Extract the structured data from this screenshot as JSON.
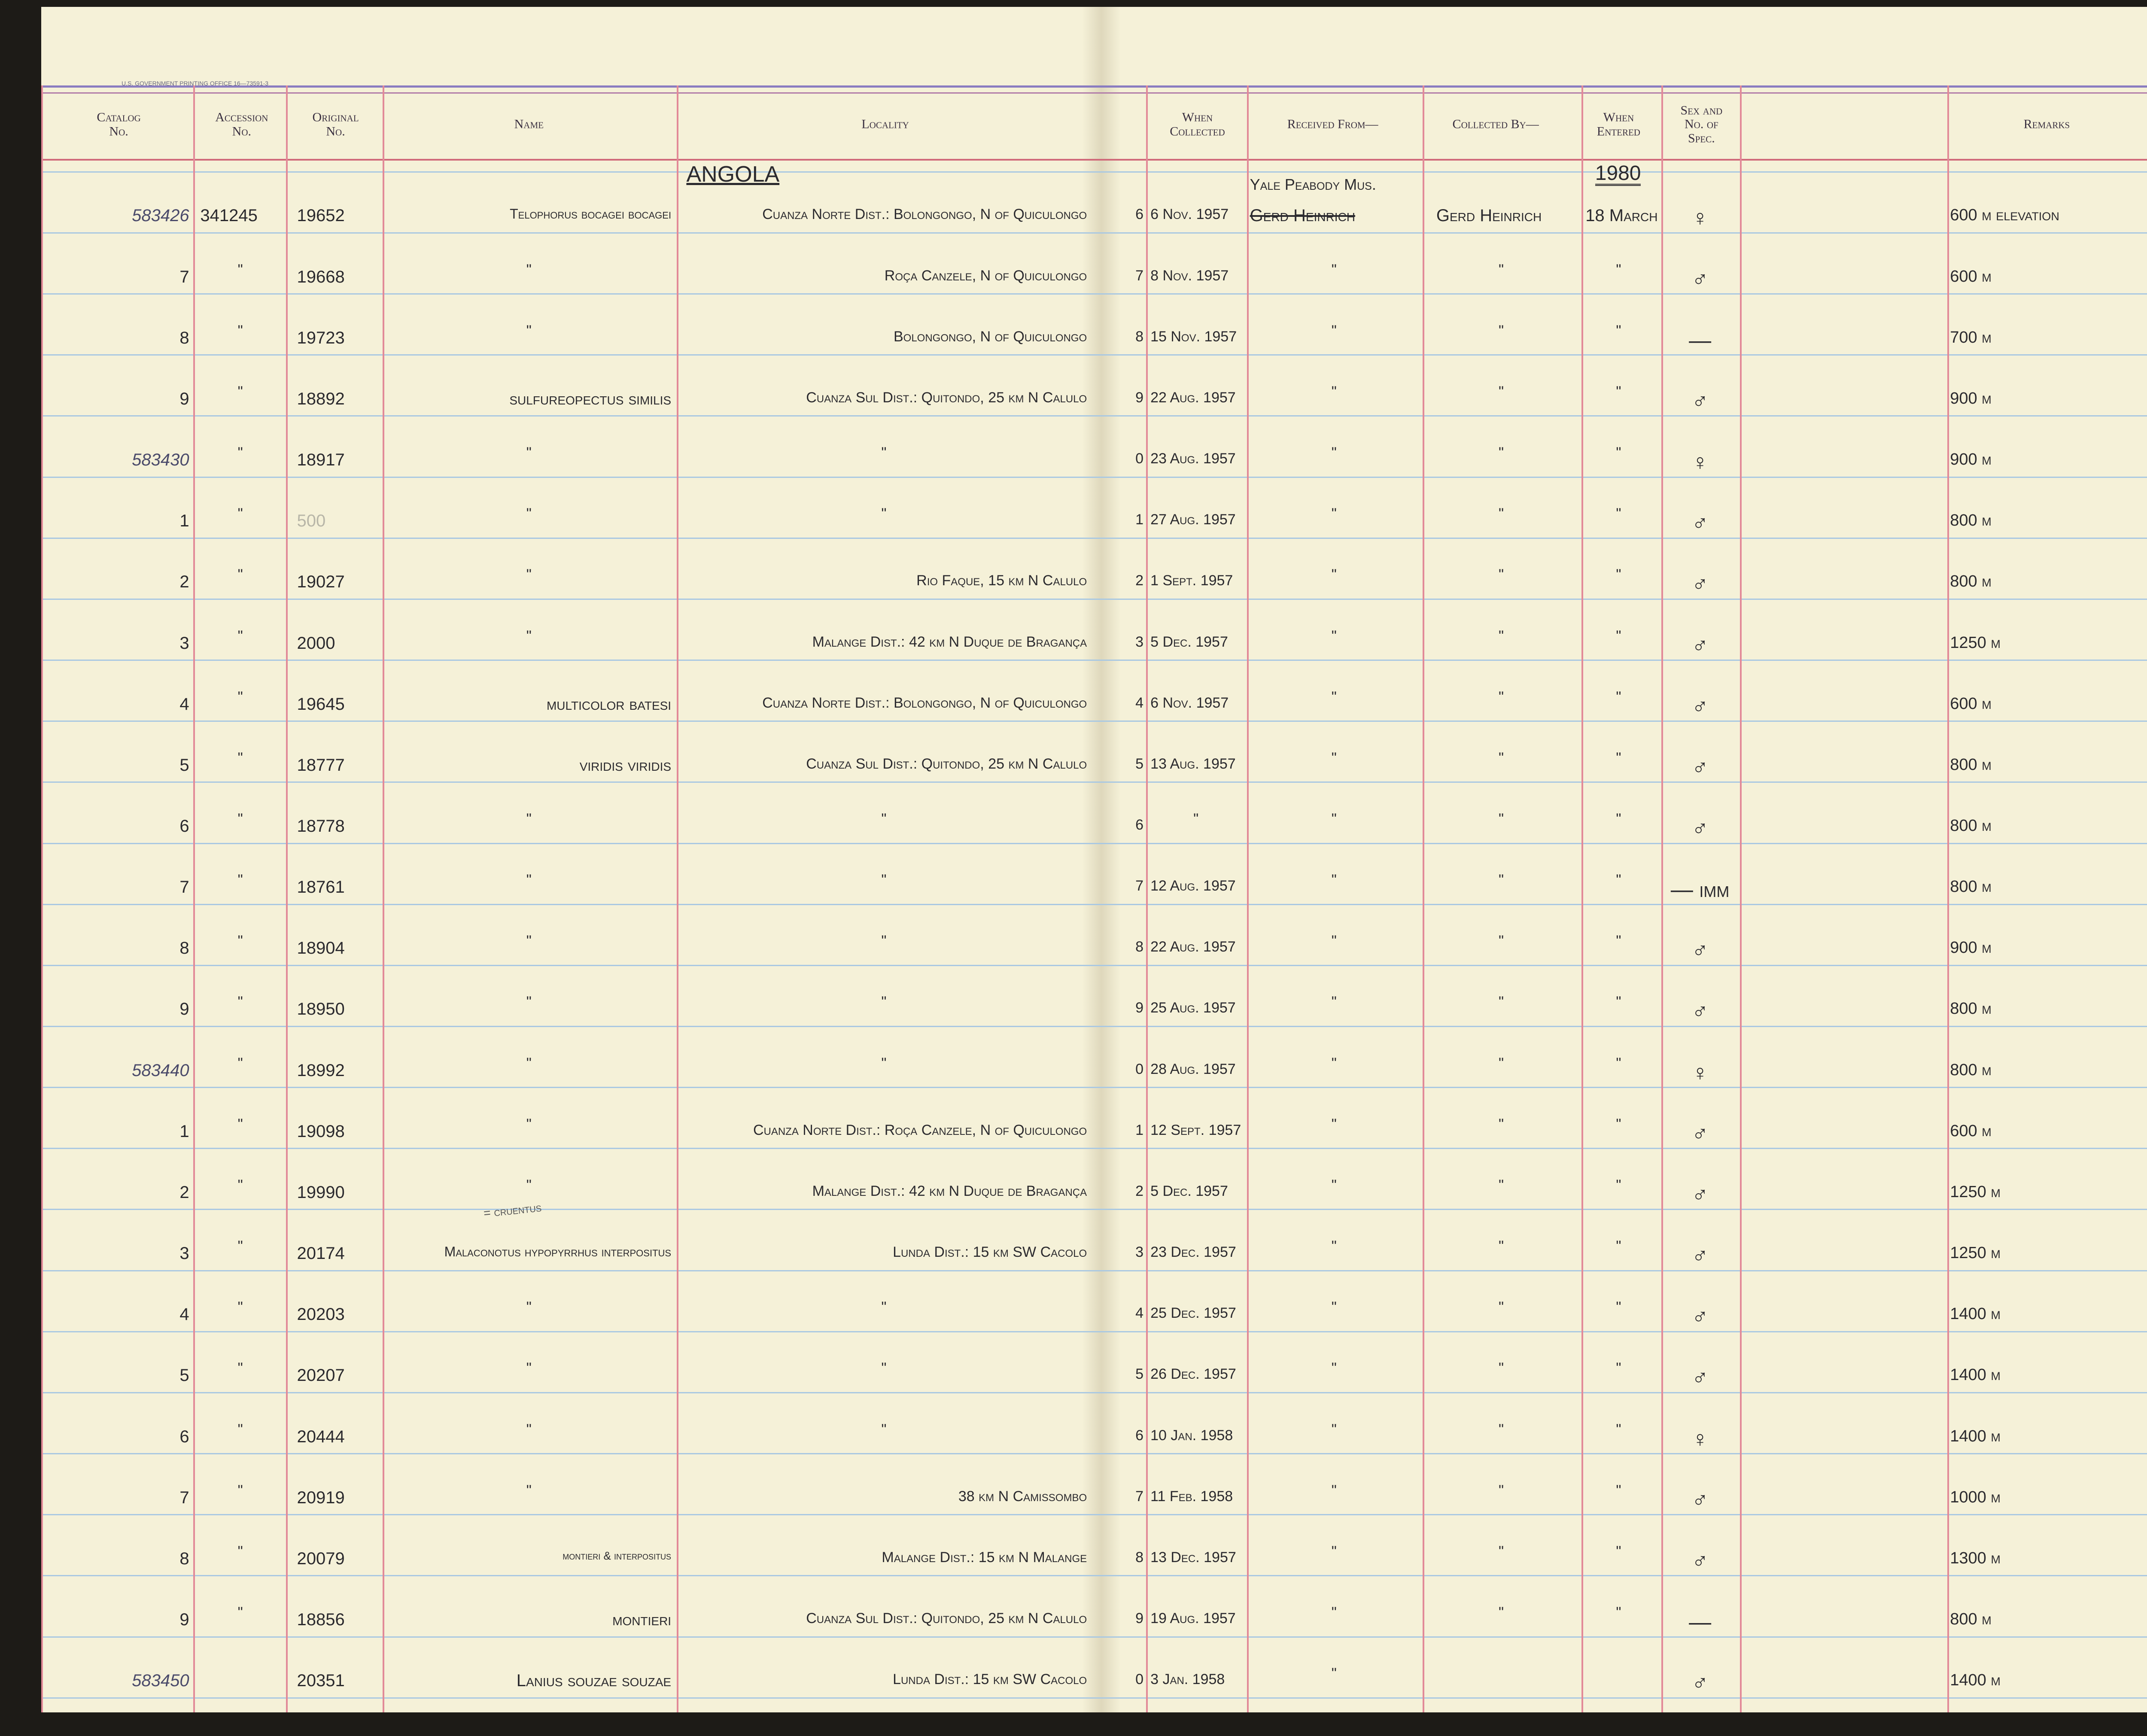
{
  "header": {
    "printer": "U.S. GOVERNMENT PRINTING OFFICE 16—73591-3",
    "columns": [
      [
        "Catalog",
        "No."
      ],
      [
        "Accession",
        "No."
      ],
      [
        "Original",
        "No."
      ],
      [
        "Name"
      ],
      [
        "Locality"
      ],
      [
        "When",
        "Collected"
      ],
      [
        "Received From—"
      ],
      [
        "Collected By—"
      ],
      [
        "When",
        "Entered"
      ],
      [
        "Sex and",
        "No. of",
        "Spec."
      ],
      [
        "Remarks"
      ]
    ]
  },
  "annotations": {
    "country": "ANGOLA",
    "received_from": "Yale Peabody Mus.",
    "year": "1980",
    "name_note": "= cruentus"
  },
  "table": {
    "rows": [
      [
        "583426",
        "341245",
        "19652",
        "Telophorus bocagei bocagei",
        "Cuanza Norte Dist.: Bolongongo, N of Quiculongo",
        "6",
        "6 Nov. 1957",
        "Gerd Heinrich",
        "Gerd Heinrich",
        "18 March",
        "♀",
        "600 m elevation"
      ],
      [
        "7",
        "\"",
        "19668",
        "\"",
        "Roça Canzele, N of Quiculongo",
        "7",
        "8 Nov. 1957",
        "\"",
        "\"",
        "\"",
        "♂",
        "600 m"
      ],
      [
        "8",
        "\"",
        "19723",
        "\"",
        "Bolongongo, N of Quiculongo",
        "8",
        "15 Nov. 1957",
        "\"",
        "\"",
        "\"",
        "—",
        "700 m"
      ],
      [
        "9",
        "\"",
        "18892",
        "sulfureopectus similis",
        "Cuanza Sul Dist.: Quitondo, 25 km N Calulo",
        "9",
        "22 Aug. 1957",
        "\"",
        "\"",
        "\"",
        "♂",
        "900 m"
      ],
      [
        "583430",
        "\"",
        "18917",
        "\"",
        "\"",
        "0",
        "23 Aug. 1957",
        "\"",
        "\"",
        "\"",
        "♀",
        "900 m"
      ],
      [
        "1",
        "\"",
        "500",
        "\"",
        "\"",
        "1",
        "27 Aug. 1957",
        "\"",
        "\"",
        "\"",
        "♂",
        "800 m"
      ],
      [
        "2",
        "\"",
        "19027",
        "\"",
        "Rio Faque, 15 km N Calulo",
        "2",
        "1 Sept. 1957",
        "\"",
        "\"",
        "\"",
        "♂",
        "800 m"
      ],
      [
        "3",
        "\"",
        "2000",
        "\"",
        "Malange Dist.: 42 km N Duque de Bragança",
        "3",
        "5 Dec. 1957",
        "\"",
        "\"",
        "\"",
        "♂",
        "1250 m"
      ],
      [
        "4",
        "\"",
        "19645",
        "multicolor batesi",
        "Cuanza Norte Dist.: Bolongongo, N of Quiculongo",
        "4",
        "6 Nov. 1957",
        "\"",
        "\"",
        "\"",
        "♂",
        "600 m"
      ],
      [
        "5",
        "\"",
        "18777",
        "viridis viridis",
        "Cuanza Sul Dist.: Quitondo, 25 km N Calulo",
        "5",
        "13 Aug. 1957",
        "\"",
        "\"",
        "\"",
        "♂",
        "800 m"
      ],
      [
        "6",
        "\"",
        "18778",
        "\"",
        "\"",
        "6",
        "\"",
        "\"",
        "\"",
        "\"",
        "♂",
        "800 m"
      ],
      [
        "7",
        "\"",
        "18761",
        "\"",
        "\"",
        "7",
        "12 Aug. 1957",
        "\"",
        "\"",
        "\"",
        "— imm",
        "800 m"
      ],
      [
        "8",
        "\"",
        "18904",
        "\"",
        "\"",
        "8",
        "22 Aug. 1957",
        "\"",
        "\"",
        "\"",
        "♂",
        "900 m"
      ],
      [
        "9",
        "\"",
        "18950",
        "\"",
        "\"",
        "9",
        "25 Aug. 1957",
        "\"",
        "\"",
        "\"",
        "♂",
        "800 m"
      ],
      [
        "583440",
        "\"",
        "18992",
        "\"",
        "\"",
        "0",
        "28 Aug. 1957",
        "\"",
        "\"",
        "\"",
        "♀",
        "800 m"
      ],
      [
        "1",
        "\"",
        "19098",
        "\"",
        "Cuanza Norte Dist.: Roça Canzele, N of Quiculongo",
        "1",
        "12 Sept. 1957",
        "\"",
        "\"",
        "\"",
        "♂",
        "600 m"
      ],
      [
        "2",
        "\"",
        "19990",
        "\"",
        "Malange Dist.: 42 km N Duque de Bragança",
        "2",
        "5 Dec. 1957",
        "\"",
        "\"",
        "\"",
        "♂",
        "1250 m"
      ],
      [
        "3",
        "\"",
        "20174",
        "Malaconotus hypopyrrhus interpositus",
        "Lunda Dist.: 15 km SW Cacolo",
        "3",
        "23 Dec. 1957",
        "\"",
        "\"",
        "\"",
        "♂",
        "1250 m"
      ],
      [
        "4",
        "\"",
        "20203",
        "\"",
        "\"",
        "4",
        "25 Dec. 1957",
        "\"",
        "\"",
        "\"",
        "♂",
        "1400 m"
      ],
      [
        "5",
        "\"",
        "20207",
        "\"",
        "\"",
        "5",
        "26 Dec. 1957",
        "\"",
        "\"",
        "\"",
        "♂",
        "1400 m"
      ],
      [
        "6",
        "\"",
        "20444",
        "\"",
        "\"",
        "6",
        "10 Jan. 1958",
        "\"",
        "\"",
        "\"",
        "♀",
        "1400 m"
      ],
      [
        "7",
        "\"",
        "20919",
        "\"",
        "38 km N Camissombo",
        "7",
        "11 Feb. 1958",
        "\"",
        "\"",
        "\"",
        "♂",
        "1000 m"
      ],
      [
        "8",
        "\"",
        "20079",
        "montieri & interpositus",
        "Malange Dist.: 15 km N Malange",
        "8",
        "13 Dec. 1957",
        "\"",
        "\"",
        "\"",
        "♂",
        "1300 m"
      ],
      [
        "9",
        "\"",
        "18856",
        "montieri",
        "Cuanza Sul Dist.: Quitondo, 25 km N Calulo",
        "9",
        "19 Aug. 1957",
        "\"",
        "\"",
        "\"",
        "—",
        "800 m"
      ],
      [
        "583450",
        null,
        "20351",
        "Lanius souzae souzae",
        "Lunda Dist.: 15 km SW Cacolo",
        "0",
        "3 Jan. 1958",
        "\"",
        null,
        null,
        "♂",
        "1400 m"
      ]
    ]
  }
}
